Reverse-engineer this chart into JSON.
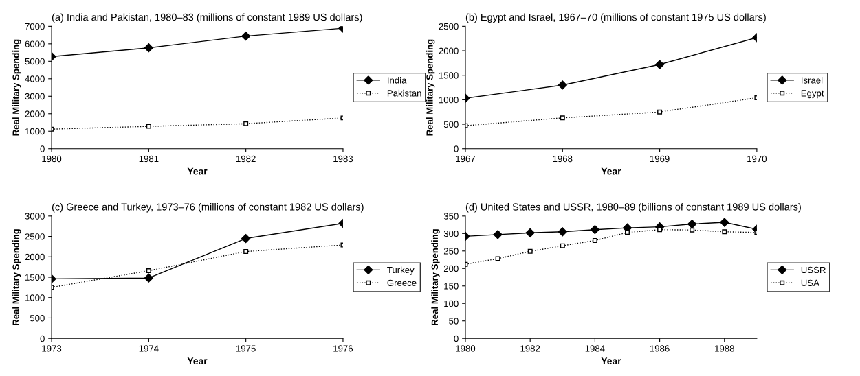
{
  "chart_data": [
    {
      "type": "line",
      "title": "(a) India and Pakistan, 1980–83 (millions of constant 1989 US dollars)",
      "xlabel": "Year",
      "ylabel": "Real Military Spending",
      "x": [
        1980,
        1981,
        1982,
        1983
      ],
      "xlim": [
        1980,
        1983
      ],
      "xticks": [
        1980,
        1981,
        1982,
        1983
      ],
      "ylim": [
        0,
        7000
      ],
      "yticks": [
        0,
        1000,
        2000,
        3000,
        4000,
        5000,
        6000,
        7000
      ],
      "grid": false,
      "legend": "right",
      "series": [
        {
          "name": "India",
          "color": "#000000",
          "marker": "diamond",
          "line_style": "solid",
          "values": [
            5270,
            5770,
            6440,
            6890
          ]
        },
        {
          "name": "Pakistan",
          "color": "#000000",
          "marker": "square",
          "line_style": "dotted",
          "values": [
            1120,
            1280,
            1430,
            1760
          ]
        }
      ]
    },
    {
      "type": "line",
      "title": "(b) Egypt and Israel, 1967–70 (millions of constant 1975 US dollars)",
      "xlabel": "Year",
      "ylabel": "Real Military Spending",
      "x": [
        1967,
        1968,
        1969,
        1970
      ],
      "xlim": [
        1967,
        1970
      ],
      "xticks": [
        1967,
        1968,
        1969,
        1970
      ],
      "ylim": [
        0,
        2500
      ],
      "yticks": [
        0,
        500,
        1000,
        1500,
        2000,
        2500
      ],
      "grid": false,
      "legend": "right",
      "series": [
        {
          "name": "Israel",
          "color": "#000000",
          "marker": "diamond",
          "line_style": "solid",
          "values": [
            1030,
            1300,
            1720,
            2270
          ]
        },
        {
          "name": "Egypt",
          "color": "#000000",
          "marker": "square",
          "line_style": "dotted",
          "values": [
            470,
            630,
            750,
            1040
          ]
        }
      ]
    },
    {
      "type": "line",
      "title": "(c) Greece and Turkey, 1973–76 (millions of constant 1982 US dollars)",
      "xlabel": "Year",
      "ylabel": "Real Military Spending",
      "x": [
        1973,
        1974,
        1975,
        1976
      ],
      "xlim": [
        1973,
        1976
      ],
      "xticks": [
        1973,
        1974,
        1975,
        1976
      ],
      "ylim": [
        0,
        3000
      ],
      "yticks": [
        0,
        500,
        1000,
        1500,
        2000,
        2500,
        3000
      ],
      "grid": false,
      "legend": "right",
      "series": [
        {
          "name": "Turkey",
          "color": "#000000",
          "marker": "diamond",
          "line_style": "solid",
          "values": [
            1460,
            1480,
            2450,
            2820
          ]
        },
        {
          "name": "Greece",
          "color": "#000000",
          "marker": "square",
          "line_style": "dotted",
          "values": [
            1250,
            1660,
            2130,
            2290
          ]
        }
      ]
    },
    {
      "type": "line",
      "title": "(d) United States and USSR, 1980–89 (billions of constant 1989 US dollars)",
      "xlabel": "Year",
      "ylabel": "Real Military Spending",
      "x": [
        1980,
        1981,
        1982,
        1983,
        1984,
        1985,
        1986,
        1987,
        1988,
        1989
      ],
      "xlim": [
        1980,
        1989
      ],
      "xticks": [
        1980,
        1982,
        1984,
        1986,
        1988
      ],
      "ylim": [
        0,
        350
      ],
      "yticks": [
        0,
        50,
        100,
        150,
        200,
        250,
        300,
        350
      ],
      "grid": false,
      "legend": "right",
      "series": [
        {
          "name": "USSR",
          "color": "#000000",
          "marker": "diamond",
          "line_style": "solid",
          "values": [
            292,
            297,
            302,
            305,
            311,
            316,
            319,
            327,
            332,
            312
          ]
        },
        {
          "name": "USA",
          "color": "#000000",
          "marker": "square",
          "line_style": "dotted",
          "values": [
            212,
            228,
            249,
            265,
            280,
            303,
            311,
            310,
            305,
            303
          ]
        }
      ]
    }
  ]
}
